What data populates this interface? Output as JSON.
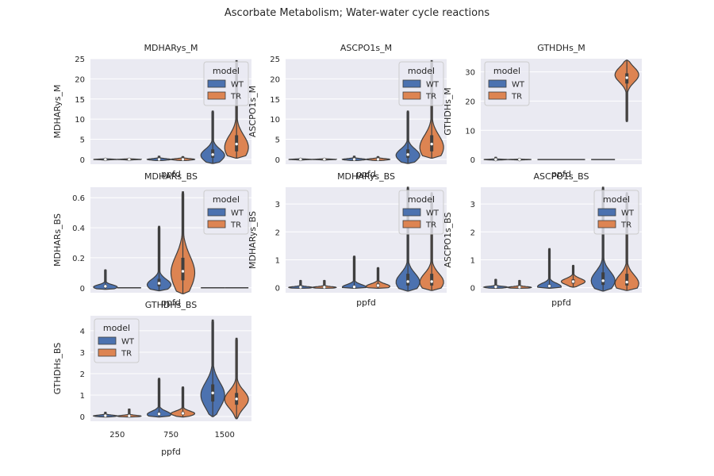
{
  "suptitle": "Ascorbate Metabolism; Water-water cycle reactions",
  "legend_title": "model",
  "x_tick_labels": [
    "250",
    "750",
    "1500"
  ],
  "colors": {
    "WT": "#4c72b0",
    "TR": "#dd8452",
    "panel_bg": "#eaeaf2",
    "grid": "#ffffff"
  },
  "chart_data": [
    {
      "type": "violin",
      "title": "MDHARys_M",
      "xlabel": "ppfd",
      "ylabel": "MDHARys_M",
      "categories": [
        "250",
        "750",
        "1500"
      ],
      "ylim": [
        -1.2,
        25
      ],
      "yticks": [
        0,
        5,
        10,
        15,
        20,
        25
      ],
      "show_xticklabels": false,
      "legend_position": "upper right",
      "series": [
        {
          "name": "WT",
          "violins": [
            {
              "min": -0.2,
              "max": 0.2,
              "median": 0.0,
              "q1": -0.05,
              "q3": 0.05,
              "peak": 0.0
            },
            {
              "min": -0.3,
              "max": 0.8,
              "median": 0.0,
              "q1": -0.1,
              "q3": 0.15,
              "peak": 0.0
            },
            {
              "min": -1.0,
              "max": 12.0,
              "median": 1.2,
              "q1": 0.4,
              "q3": 2.5,
              "peak": 1.0
            }
          ]
        },
        {
          "name": "TR",
          "violins": [
            {
              "min": -0.2,
              "max": 0.2,
              "median": 0.0,
              "q1": -0.05,
              "q3": 0.05,
              "peak": 0.0
            },
            {
              "min": -0.3,
              "max": 0.7,
              "median": 0.0,
              "q1": -0.1,
              "q3": 0.15,
              "peak": 0.0
            },
            {
              "min": 0.3,
              "max": 24.5,
              "median": 3.8,
              "q1": 2.0,
              "q3": 6.0,
              "peak": 3.0
            }
          ]
        }
      ]
    },
    {
      "type": "violin",
      "title": "ASCPO1s_M",
      "xlabel": "ppfd",
      "ylabel": "ASCPO1s_M",
      "categories": [
        "250",
        "750",
        "1500"
      ],
      "ylim": [
        -1.2,
        25
      ],
      "yticks": [
        0,
        5,
        10,
        15,
        20,
        25
      ],
      "show_xticklabels": false,
      "legend_position": "upper right",
      "series": [
        {
          "name": "WT",
          "violins": [
            {
              "min": -0.2,
              "max": 0.2,
              "median": 0.0,
              "q1": -0.05,
              "q3": 0.05,
              "peak": 0.0
            },
            {
              "min": -0.3,
              "max": 0.8,
              "median": 0.0,
              "q1": -0.1,
              "q3": 0.15,
              "peak": 0.0
            },
            {
              "min": -1.0,
              "max": 12.0,
              "median": 1.2,
              "q1": 0.4,
              "q3": 2.5,
              "peak": 1.0
            }
          ]
        },
        {
          "name": "TR",
          "violins": [
            {
              "min": -0.2,
              "max": 0.2,
              "median": 0.0,
              "q1": -0.05,
              "q3": 0.05,
              "peak": 0.0
            },
            {
              "min": -0.3,
              "max": 0.7,
              "median": 0.0,
              "q1": -0.1,
              "q3": 0.15,
              "peak": 0.0
            },
            {
              "min": 0.3,
              "max": 24.5,
              "median": 3.8,
              "q1": 2.0,
              "q3": 6.0,
              "peak": 3.0
            }
          ]
        }
      ]
    },
    {
      "type": "violin",
      "title": "GTHDHs_M",
      "xlabel": "ppfd",
      "ylabel": "GTHDHs_M",
      "categories": [
        "250",
        "750",
        "1500"
      ],
      "ylim": [
        -1.6,
        34.5
      ],
      "yticks": [
        0,
        10,
        20,
        30
      ],
      "show_xticklabels": false,
      "legend_position": "upper left",
      "series": [
        {
          "name": "WT",
          "violins": [
            {
              "min": -0.3,
              "max": 0.8,
              "median": 0.0,
              "q1": -0.05,
              "q3": 0.1,
              "peak": 0.0
            },
            {
              "min": 0.0,
              "max": 0.0,
              "median": 0.0,
              "q1": 0.0,
              "q3": 0.0,
              "peak": 0.0
            },
            {
              "min": 0.0,
              "max": 0.0,
              "median": 0.0,
              "q1": 0.0,
              "q3": 0.0,
              "peak": 0.0
            }
          ]
        },
        {
          "name": "TR",
          "violins": [
            {
              "min": -0.2,
              "max": 0.2,
              "median": 0.0,
              "q1": -0.05,
              "q3": 0.05,
              "peak": 0.0
            },
            {
              "min": 0.0,
              "max": 0.0,
              "median": 0.0,
              "q1": 0.0,
              "q3": 0.0,
              "peak": 0.0
            },
            {
              "min": 13.0,
              "max": 34.0,
              "median": 28.0,
              "q1": 26.0,
              "q3": 29.5,
              "peak": 29.0
            }
          ]
        }
      ]
    },
    {
      "type": "violin",
      "title": "MDHARs_BS",
      "xlabel": "ppfd",
      "ylabel": "MDHARs_BS",
      "categories": [
        "250",
        "750",
        "1500"
      ],
      "ylim": [
        -0.033,
        0.67
      ],
      "yticks": [
        0.0,
        0.2,
        0.4,
        0.6
      ],
      "show_xticklabels": false,
      "legend_position": "upper right",
      "series": [
        {
          "name": "WT",
          "violins": [
            {
              "min": -0.01,
              "max": 0.12,
              "median": 0.01,
              "q1": 0.0,
              "q3": 0.02,
              "peak": 0.005
            },
            {
              "min": -0.02,
              "max": 0.41,
              "median": 0.03,
              "q1": 0.01,
              "q3": 0.06,
              "peak": 0.02
            },
            {
              "min": 0.0,
              "max": 0.0,
              "median": 0.0,
              "q1": 0.0,
              "q3": 0.0,
              "peak": 0.0
            }
          ]
        },
        {
          "name": "TR",
          "violins": [
            {
              "min": 0.0,
              "max": 0.0,
              "median": 0.0,
              "q1": 0.0,
              "q3": 0.0,
              "peak": 0.0
            },
            {
              "min": -0.04,
              "max": 0.64,
              "median": 0.11,
              "q1": 0.05,
              "q3": 0.2,
              "peak": 0.1
            },
            {
              "min": 0.0,
              "max": 0.0,
              "median": 0.0,
              "q1": 0.0,
              "q3": 0.0,
              "peak": 0.0
            }
          ]
        }
      ]
    },
    {
      "type": "violin",
      "title": "MDHARys_BS",
      "xlabel": "ppfd",
      "ylabel": "MDHARys_BS",
      "categories": [
        "250",
        "750",
        "1500"
      ],
      "ylim": [
        -0.18,
        3.6
      ],
      "yticks": [
        0,
        1,
        2,
        3
      ],
      "show_xticklabels": false,
      "legend_position": "upper right",
      "series": [
        {
          "name": "WT",
          "violins": [
            {
              "min": -0.02,
              "max": 0.26,
              "median": 0.02,
              "q1": 0.0,
              "q3": 0.04,
              "peak": 0.01
            },
            {
              "min": -0.02,
              "max": 1.13,
              "median": 0.03,
              "q1": 0.01,
              "q3": 0.07,
              "peak": 0.02
            },
            {
              "min": -0.12,
              "max": 3.6,
              "median": 0.22,
              "q1": 0.08,
              "q3": 0.5,
              "peak": 0.2
            }
          ]
        },
        {
          "name": "TR",
          "violins": [
            {
              "min": -0.02,
              "max": 0.26,
              "median": 0.02,
              "q1": 0.0,
              "q3": 0.04,
              "peak": 0.01
            },
            {
              "min": -0.02,
              "max": 0.72,
              "median": 0.08,
              "q1": 0.03,
              "q3": 0.15,
              "peak": 0.05
            },
            {
              "min": -0.1,
              "max": 3.4,
              "median": 0.22,
              "q1": 0.08,
              "q3": 0.5,
              "peak": 0.2
            }
          ]
        }
      ]
    },
    {
      "type": "violin",
      "title": "ASCPO1s_BS",
      "xlabel": "ppfd",
      "ylabel": "ASCPO1s_BS",
      "categories": [
        "250",
        "750",
        "1500"
      ],
      "ylim": [
        -0.18,
        3.6
      ],
      "yticks": [
        0,
        1,
        2,
        3
      ],
      "show_xticklabels": false,
      "legend_position": "upper right",
      "series": [
        {
          "name": "WT",
          "violins": [
            {
              "min": -0.02,
              "max": 0.3,
              "median": 0.03,
              "q1": 0.01,
              "q3": 0.05,
              "peak": 0.02
            },
            {
              "min": -0.02,
              "max": 1.4,
              "median": 0.06,
              "q1": 0.02,
              "q3": 0.12,
              "peak": 0.04
            },
            {
              "min": -0.12,
              "max": 3.6,
              "median": 0.25,
              "q1": 0.1,
              "q3": 0.55,
              "peak": 0.25
            }
          ]
        },
        {
          "name": "TR",
          "violins": [
            {
              "min": -0.02,
              "max": 0.26,
              "median": 0.02,
              "q1": 0.0,
              "q3": 0.04,
              "peak": 0.01
            },
            {
              "min": 0.02,
              "max": 0.8,
              "median": 0.22,
              "q1": 0.15,
              "q3": 0.3,
              "peak": 0.22
            },
            {
              "min": -0.1,
              "max": 3.4,
              "median": 0.2,
              "q1": 0.08,
              "q3": 0.5,
              "peak": 0.15
            }
          ]
        }
      ]
    },
    {
      "type": "violin",
      "title": "GTHDHs_BS",
      "xlabel": "ppfd",
      "ylabel": "GTHDHs_BS",
      "categories": [
        "250",
        "750",
        "1500"
      ],
      "ylim": [
        -0.22,
        4.7
      ],
      "yticks": [
        0,
        1,
        2,
        3,
        4
      ],
      "show_xticklabels": true,
      "legend_position": "upper left",
      "series": [
        {
          "name": "WT",
          "violins": [
            {
              "min": -0.02,
              "max": 0.2,
              "median": 0.04,
              "q1": 0.02,
              "q3": 0.07,
              "peak": 0.03
            },
            {
              "min": -0.02,
              "max": 1.78,
              "median": 0.12,
              "q1": 0.07,
              "q3": 0.2,
              "peak": 0.1
            },
            {
              "min": 0.0,
              "max": 4.5,
              "median": 1.1,
              "q1": 0.7,
              "q3": 1.5,
              "peak": 1.0
            }
          ]
        },
        {
          "name": "TR",
          "violins": [
            {
              "min": -0.02,
              "max": 0.35,
              "median": 0.03,
              "q1": 0.01,
              "q3": 0.06,
              "peak": 0.02
            },
            {
              "min": -0.02,
              "max": 1.38,
              "median": 0.15,
              "q1": 0.09,
              "q3": 0.22,
              "peak": 0.14
            },
            {
              "min": -0.1,
              "max": 3.65,
              "median": 0.82,
              "q1": 0.55,
              "q3": 1.1,
              "peak": 0.8
            }
          ]
        }
      ]
    }
  ]
}
